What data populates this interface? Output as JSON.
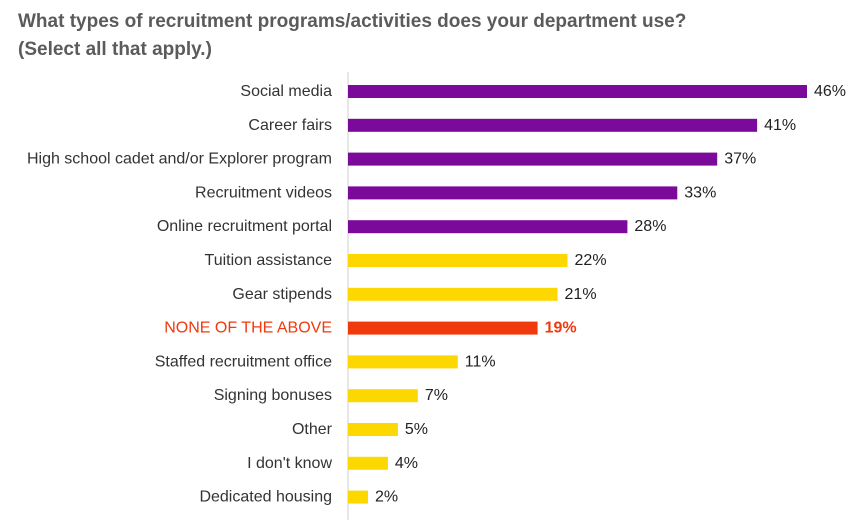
{
  "title_line1": "What types of recruitment programs/activities does your department use?",
  "title_line2": "(Select all that apply.)",
  "colors": {
    "purple": "#7b0a9a",
    "yellow": "#fcd800",
    "highlight": "#f0390c",
    "axis": "#cfcfcf"
  },
  "chart_data": {
    "type": "bar",
    "orientation": "horizontal",
    "categories": [
      "Social media",
      "Career fairs",
      "High school cadet and/or Explorer program",
      "Recruitment videos",
      "Online recruitment portal",
      "Tuition assistance",
      "Gear stipends",
      "NONE OF THE ABOVE",
      "Staffed recruitment office",
      "Signing bonuses",
      "Other",
      "I don't know",
      "Dedicated housing"
    ],
    "values": [
      46,
      41,
      37,
      33,
      28,
      22,
      21,
      19,
      11,
      7,
      5,
      4,
      2
    ],
    "value_labels": [
      "46%",
      "41%",
      "37%",
      "33%",
      "28%",
      "22%",
      "21%",
      "19%",
      "11%",
      "7%",
      "5%",
      "4%",
      "2%"
    ],
    "bar_colors": [
      "purple",
      "purple",
      "purple",
      "purple",
      "purple",
      "yellow",
      "yellow",
      "highlight",
      "yellow",
      "yellow",
      "yellow",
      "yellow",
      "yellow"
    ],
    "highlighted": [
      "NONE OF THE ABOVE"
    ],
    "xlim": [
      0,
      46
    ],
    "grid": false,
    "legend": "none"
  }
}
